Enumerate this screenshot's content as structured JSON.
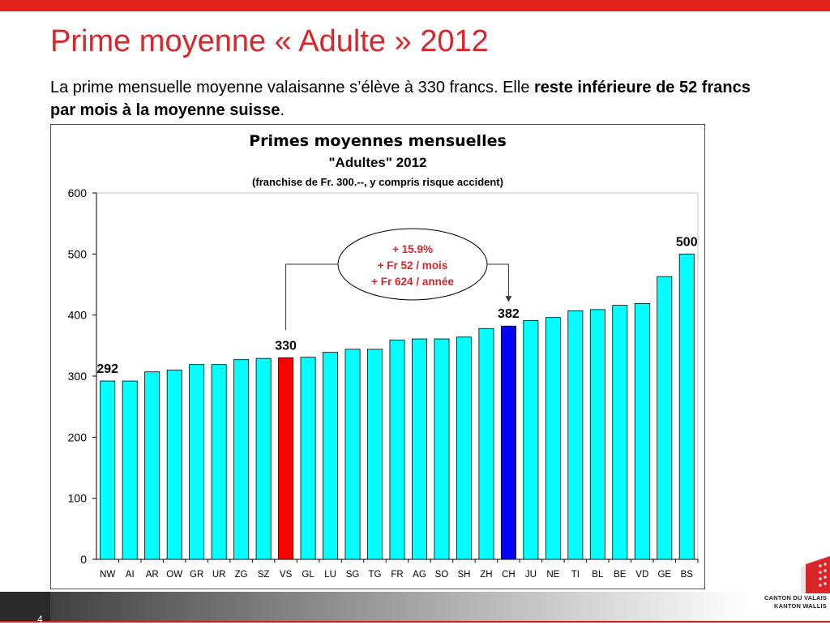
{
  "slide": {
    "title": "Prime moyenne « Adulte » 2012",
    "subtitle_plain": "La prime mensuelle moyenne valaisanne s’élève à 330 francs. Elle ",
    "subtitle_bold": "reste inférieure de 52 francs par mois à la moyenne suisse",
    "subtitle_end": ".",
    "page_number": "4",
    "logo_line1": "CANTON DU VALAIS",
    "logo_line2": "KANTON WALLIS"
  },
  "colors": {
    "bar_default": "#00ffff",
    "bar_vs": "#ff0000",
    "bar_ch": "#0000ff",
    "accent_red": "#d8262a"
  },
  "chart_data": {
    "type": "bar",
    "title_line1": "Primes moyennes mensuelles",
    "title_line2": "\"Adultes\" 2012",
    "title_line3": "(franchise de Fr. 300.--, y compris risque accident)",
    "xlabel": "",
    "ylabel": "",
    "ylim": [
      0,
      600
    ],
    "yticks": [
      0,
      100,
      200,
      300,
      400,
      500,
      600
    ],
    "categories": [
      "NW",
      "AI",
      "AR",
      "OW",
      "GR",
      "UR",
      "ZG",
      "SZ",
      "VS",
      "GL",
      "LU",
      "SG",
      "TG",
      "FR",
      "AG",
      "SO",
      "SH",
      "ZH",
      "CH",
      "JU",
      "NE",
      "TI",
      "BL",
      "BE",
      "VD",
      "GE",
      "BS"
    ],
    "values": [
      292,
      292,
      307,
      310,
      319,
      319,
      327,
      329,
      330,
      331,
      339,
      344,
      344,
      359,
      361,
      361,
      364,
      378,
      382,
      391,
      396,
      407,
      409,
      416,
      419,
      463,
      500
    ],
    "highlight": {
      "VS": "bar_vs",
      "CH": "bar_ch"
    },
    "data_labels": [
      {
        "category": "NW",
        "text": "292"
      },
      {
        "category": "VS",
        "text": "330"
      },
      {
        "category": "CH",
        "text": "382"
      },
      {
        "category": "BS",
        "text": "500"
      }
    ],
    "annotation": {
      "lines": [
        "+ 15.9%",
        "+ Fr 52 / mois",
        "+ Fr 624 / année"
      ],
      "from": "VS",
      "to": "CH"
    },
    "grid": false
  }
}
